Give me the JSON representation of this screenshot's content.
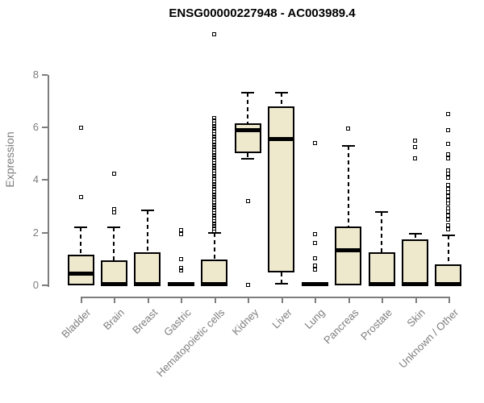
{
  "title": "ENSG00000227948 - AC003989.4",
  "colors": {
    "box_fill": "#EEE8CD",
    "box_border": "#000000",
    "axis": "#7D7D7D",
    "title_text": "#000000",
    "background": "#FFFFFF"
  },
  "chart_data": {
    "type": "boxplot",
    "title": "ENSG00000227948 - AC003989.4",
    "xlabel": "",
    "ylabel": "Expression",
    "ylim": [
      0,
      8
    ],
    "yticks": [
      0,
      2,
      4,
      6,
      8
    ],
    "grid": "off",
    "legend": "none",
    "categories": [
      "Bladder",
      "Brain",
      "Breast",
      "Gastric",
      "Hematopoietic cells",
      "Kidney",
      "Liver",
      "Lung",
      "Pancreas",
      "Prostate",
      "Skin",
      "Unknown / Other"
    ],
    "series": [
      {
        "category": "Bladder",
        "whisker_low": 0,
        "q1": 0,
        "median": 0.45,
        "q3": 1.17,
        "whisker_high": 2.2,
        "outliers": [
          3.35,
          6.0
        ]
      },
      {
        "category": "Brain",
        "whisker_low": 0,
        "q1": 0,
        "median": 0.05,
        "q3": 0.95,
        "whisker_high": 2.2,
        "outliers": [
          2.78,
          2.88,
          4.23
        ]
      },
      {
        "category": "Breast",
        "whisker_low": 0,
        "q1": 0,
        "median": 0.05,
        "q3": 1.27,
        "whisker_high": 2.85,
        "outliers": []
      },
      {
        "category": "Gastric",
        "whisker_low": 0,
        "q1": 0,
        "median": 0.05,
        "q3": 0.08,
        "whisker_high": 0.08,
        "outliers": [
          0.58,
          0.67,
          1.01,
          1.93,
          2.11
        ]
      },
      {
        "category": "Hematopoietic cells",
        "whisker_low": 0,
        "q1": 0,
        "median": 0.06,
        "q3": 0.98,
        "whisker_high": 2.0,
        "outliers": [
          2.05,
          2.15,
          2.25,
          2.35,
          2.45,
          2.55,
          2.65,
          2.75,
          2.85,
          2.95,
          3.05,
          3.15,
          3.25,
          3.35,
          3.45,
          3.55,
          3.65,
          3.75,
          3.85,
          3.95,
          4.05,
          4.15,
          4.25,
          4.35,
          4.45,
          4.55,
          4.65,
          4.75,
          4.85,
          4.95,
          5.05,
          5.15,
          5.25,
          5.35,
          5.45,
          5.55,
          5.65,
          5.75,
          5.85,
          5.95,
          6.05,
          6.15,
          6.25,
          6.37,
          9.55
        ]
      },
      {
        "category": "Kidney",
        "whisker_low": 4.82,
        "q1": 5.03,
        "median": 5.9,
        "q3": 6.16,
        "whisker_high": 7.32,
        "outliers": [
          0.02,
          3.2
        ]
      },
      {
        "category": "Liver",
        "whisker_low": 0.07,
        "q1": 0.5,
        "median": 5.57,
        "q3": 6.8,
        "whisker_high": 7.32,
        "outliers": []
      },
      {
        "category": "Lung",
        "whisker_low": 0,
        "q1": 0,
        "median": 0.06,
        "q3": 0.12,
        "whisker_high": 0.12,
        "outliers": [
          0.61,
          0.74,
          1.04,
          1.62,
          1.93,
          5.42
        ]
      },
      {
        "category": "Pancreas",
        "whisker_low": 0,
        "q1": 0,
        "median": 1.32,
        "q3": 2.25,
        "whisker_high": 5.3,
        "outliers": [
          5.97
        ]
      },
      {
        "category": "Prostate",
        "whisker_low": 0,
        "q1": 0,
        "median": 0.04,
        "q3": 1.27,
        "whisker_high": 2.8,
        "outliers": []
      },
      {
        "category": "Skin",
        "whisker_low": 0,
        "q1": 0,
        "median": 0.04,
        "q3": 1.76,
        "whisker_high": 1.95,
        "outliers": [
          4.82,
          5.25,
          5.5
        ]
      },
      {
        "category": "Unknown / Other",
        "whisker_low": 0,
        "q1": 0,
        "median": 0.04,
        "q3": 0.8,
        "whisker_high": 1.9,
        "outliers": [
          2.14,
          2.27,
          2.49,
          2.65,
          2.8,
          2.93,
          3.1,
          3.24,
          3.39,
          3.54,
          3.67,
          3.8,
          4.08,
          4.23,
          4.36,
          4.82,
          4.97,
          5.38,
          5.89,
          6.5
        ]
      }
    ]
  }
}
